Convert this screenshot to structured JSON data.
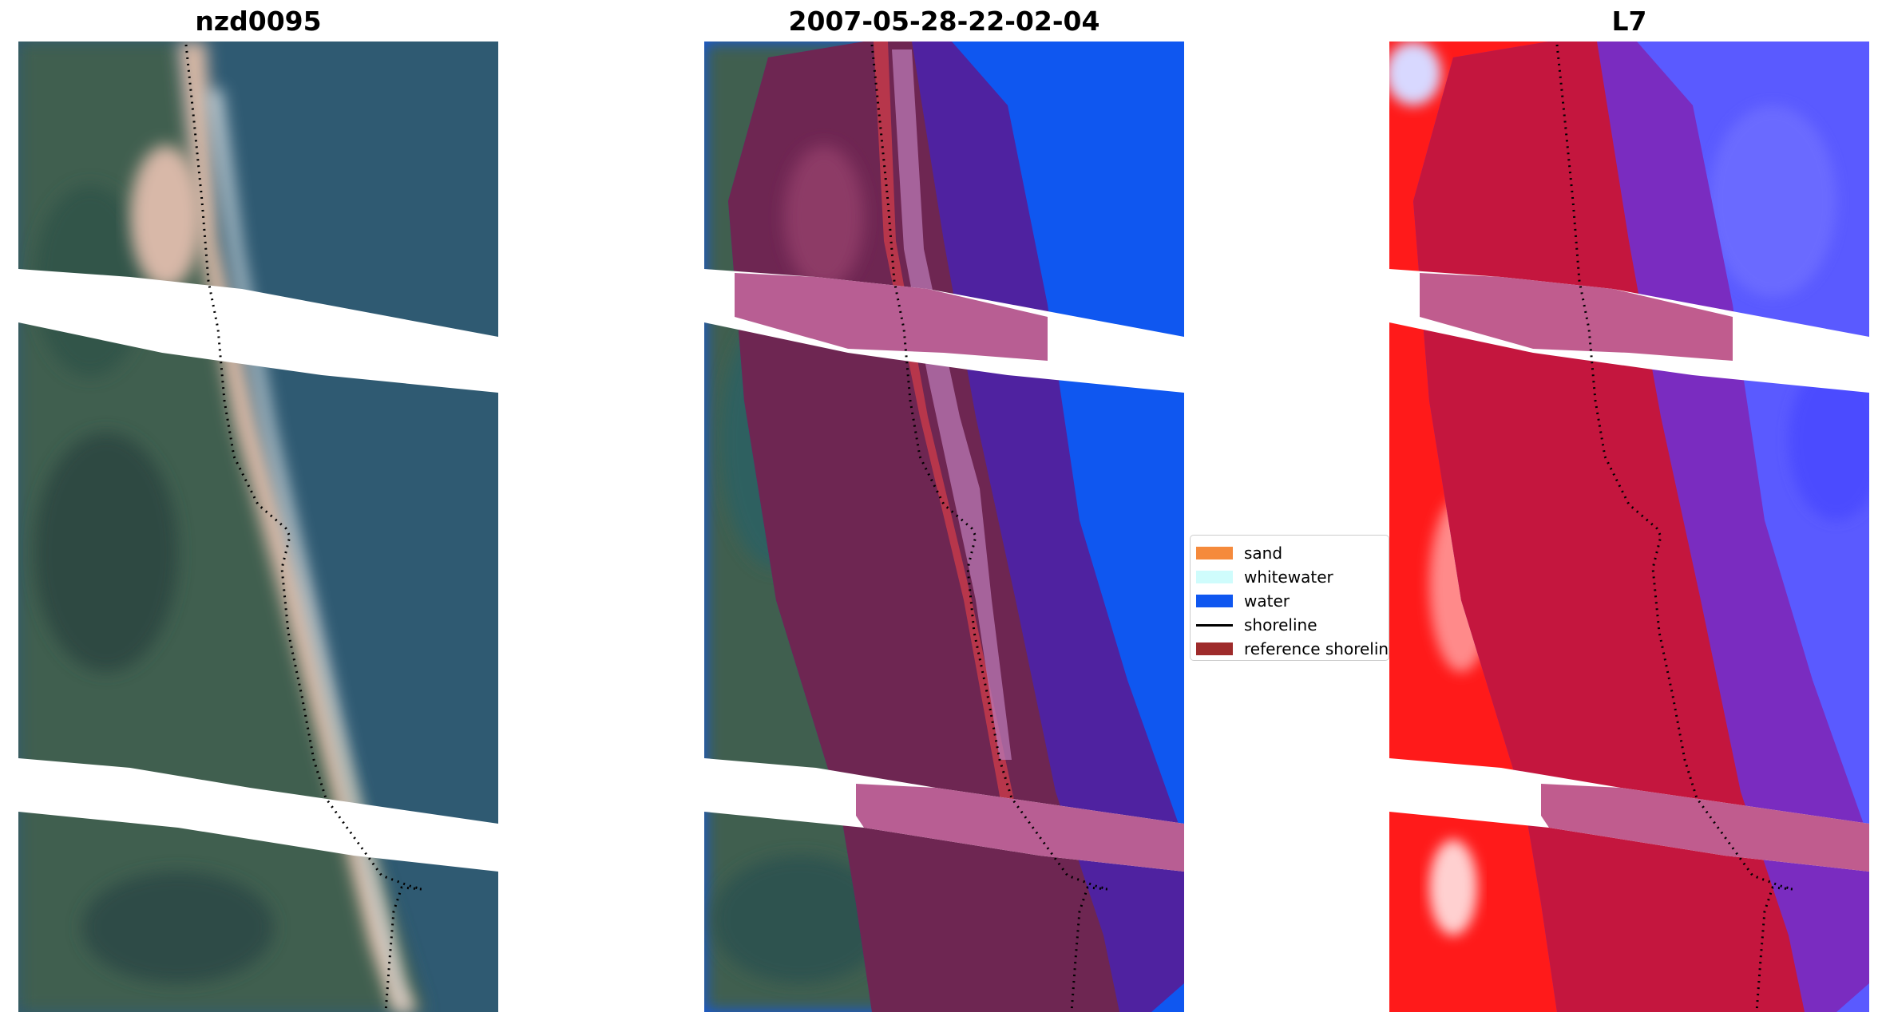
{
  "panels": [
    {
      "title": "nzd0095"
    },
    {
      "title": "2007-05-28-22-02-04"
    },
    {
      "title": "L7"
    }
  ],
  "legend": {
    "items": [
      {
        "label": "sand",
        "color": "#f58a3c"
      },
      {
        "label": "whitewater",
        "color": "#cffcfc"
      },
      {
        "label": "water",
        "color": "#0f57f0"
      },
      {
        "label": "shoreline",
        "color": "#000000"
      },
      {
        "label": "reference shoreline",
        "color": "#9e2b2b"
      }
    ]
  },
  "colors": {
    "water_class": "#0f57f0",
    "reference_buffer": "#9e2b2b",
    "ndwi_land": "#ff1a1a",
    "ndwi_water": "#5a5aff"
  }
}
